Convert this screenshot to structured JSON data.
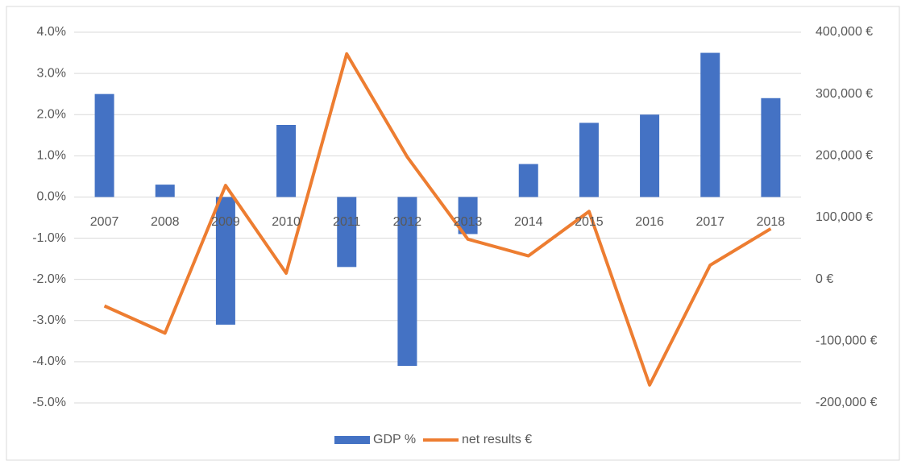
{
  "chart_data": {
    "type": "combo",
    "categories": [
      "2007",
      "2008",
      "2009",
      "2010",
      "2011",
      "2012",
      "2013",
      "2014",
      "2015",
      "2016",
      "2017",
      "2018"
    ],
    "series": [
      {
        "name": "GDP %",
        "type": "bar",
        "color": "#4472c4",
        "values": [
          2.5,
          0.3,
          -3.1,
          1.75,
          -1.7,
          -4.1,
          -0.9,
          0.8,
          1.8,
          2.0,
          3.5,
          2.4
        ]
      },
      {
        "name": "net results €",
        "type": "line",
        "color": "#ed7d31",
        "axis": "y2",
        "values": [
          -43000,
          -87000,
          152000,
          10000,
          365000,
          198000,
          65000,
          38000,
          110000,
          -171000,
          23000,
          82000
        ]
      }
    ],
    "ylim": [
      -5,
      4
    ],
    "yticks": [
      {
        "value": 4,
        "label": "4.0%"
      },
      {
        "value": 3,
        "label": "3.0%"
      },
      {
        "value": 2,
        "label": "2.0%"
      },
      {
        "value": 1,
        "label": "1.0%"
      },
      {
        "value": 0,
        "label": "0.0%"
      },
      {
        "value": -1,
        "label": "-1.0%"
      },
      {
        "value": -2,
        "label": "-2.0%"
      },
      {
        "value": -3,
        "label": "-3.0%"
      },
      {
        "value": -4,
        "label": "-4.0%"
      },
      {
        "value": -5,
        "label": "-5.0%"
      }
    ],
    "y2lim": [
      -200000,
      400000
    ],
    "y2ticks": [
      {
        "value": 400000,
        "label": "400,000 €"
      },
      {
        "value": 300000,
        "label": "300,000 €"
      },
      {
        "value": 200000,
        "label": "200,000 €"
      },
      {
        "value": 100000,
        "label": "100,000 €"
      },
      {
        "value": 0,
        "label": "0 €"
      },
      {
        "value": -100000,
        "label": "-100,000 €"
      },
      {
        "value": -200000,
        "label": "-200,000 €"
      }
    ],
    "grid": true,
    "legend": "bottom"
  }
}
